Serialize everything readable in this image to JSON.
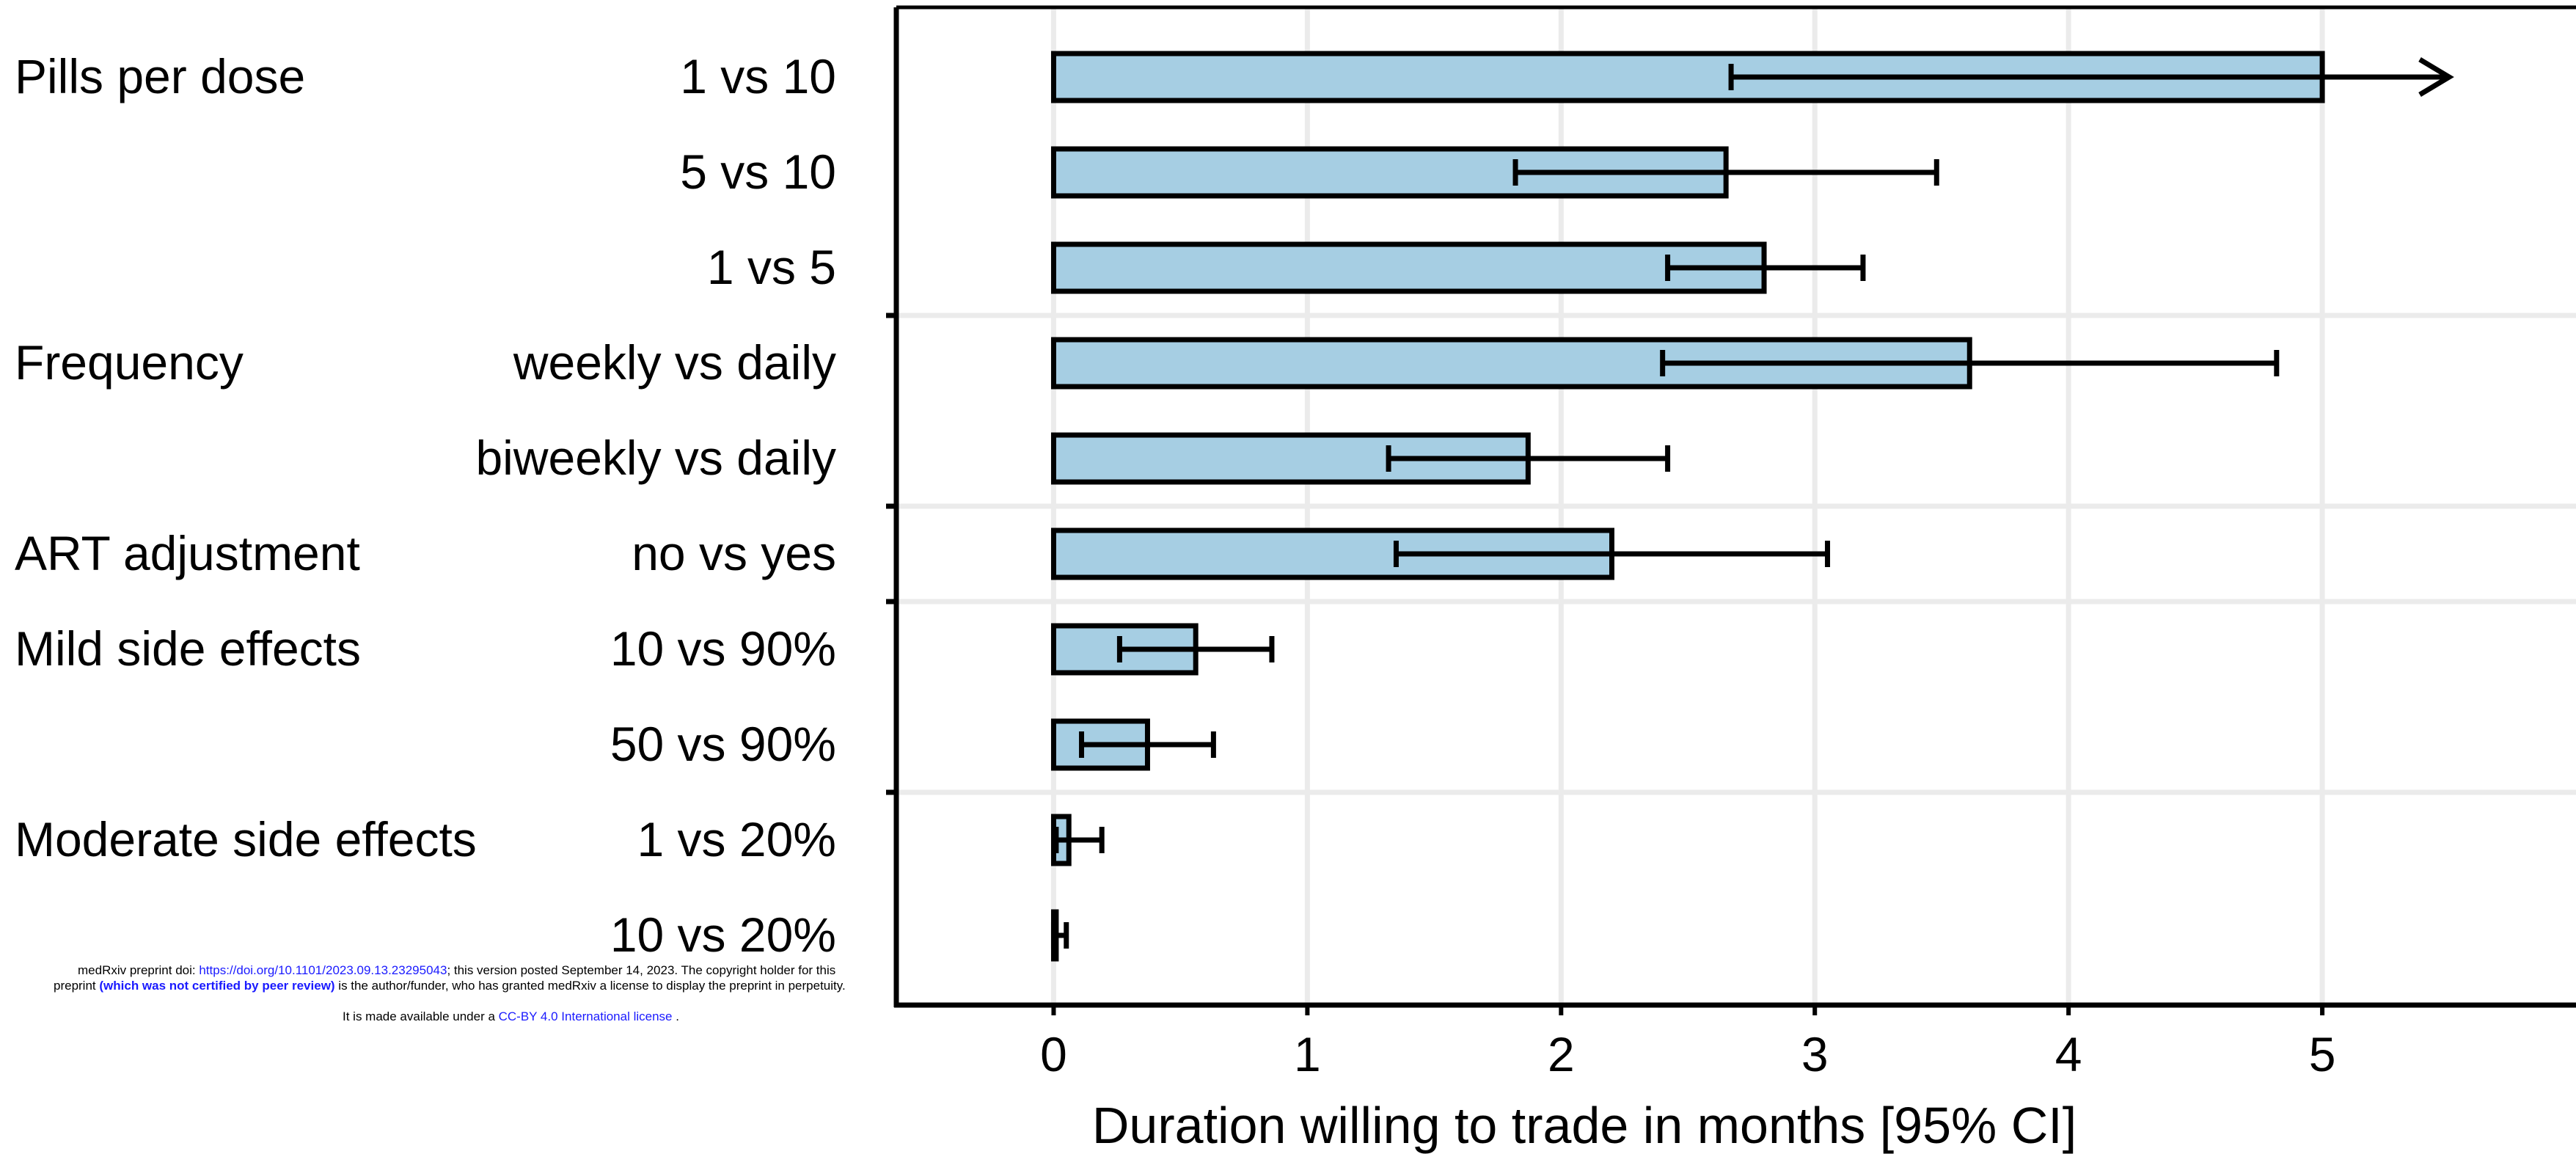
{
  "chart_data": {
    "type": "bar",
    "orientation": "horizontal",
    "xlabel": "Duration willing to trade in months [95% CI]",
    "xlim": [
      -0.62,
      6.0
    ],
    "xticks": [
      0,
      1,
      2,
      3,
      4,
      5
    ],
    "grid": true,
    "bar_color": "#a6cee3",
    "groups": [
      {
        "label": "Pills per dose",
        "rows": [
          {
            "label": "1 vs 10",
            "value": 5.0,
            "ci_low": 2.67,
            "ci_high": 5.5,
            "truncated": true
          },
          {
            "label": "5 vs 10",
            "value": 2.65,
            "ci_low": 1.82,
            "ci_high": 3.48
          },
          {
            "label": "1 vs 5",
            "value": 2.8,
            "ci_low": 2.42,
            "ci_high": 3.19
          }
        ]
      },
      {
        "label": "Frequency",
        "rows": [
          {
            "label": "weekly vs daily",
            "value": 3.61,
            "ci_low": 2.4,
            "ci_high": 4.82
          },
          {
            "label": "biweekly vs daily",
            "value": 1.87,
            "ci_low": 1.32,
            "ci_high": 2.42
          }
        ]
      },
      {
        "label": "ART adjustment",
        "rows": [
          {
            "label": "no vs yes",
            "value": 2.2,
            "ci_low": 1.35,
            "ci_high": 3.05
          }
        ]
      },
      {
        "label": "Mild side effects",
        "rows": [
          {
            "label": "10 vs 90%",
            "value": 0.56,
            "ci_low": 0.26,
            "ci_high": 0.86
          },
          {
            "label": "50 vs 90%",
            "value": 0.37,
            "ci_low": 0.11,
            "ci_high": 0.63
          }
        ]
      },
      {
        "label": "Moderate side effects",
        "rows": [
          {
            "label": "1 vs 20%",
            "value": 0.06,
            "ci_low": 0.01,
            "ci_high": 0.19
          },
          {
            "label": "10 vs 20%",
            "value": 0.01,
            "ci_low": 0.0,
            "ci_high": 0.05
          }
        ]
      }
    ]
  },
  "notice": {
    "line1_prefix": "medRxiv preprint doi: ",
    "doi_link": "https://doi.org/10.1101/2023.09.13.23295043",
    "line1_suffix": "; this version posted September 14, 2023. The copyright holder for this",
    "line2_prefix": "preprint ",
    "line2_bold": "(which was not certified by peer review)",
    "line2_suffix": " is the author/funder, who has granted medRxiv a license to display the preprint in perpetuity.",
    "line3_prefix": "It is made available under a ",
    "license_link": "CC-BY 4.0 International license",
    "line3_suffix": " ."
  }
}
